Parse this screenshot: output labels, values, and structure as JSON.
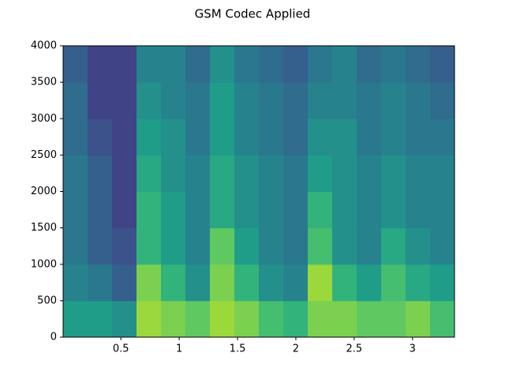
{
  "chart_data": {
    "type": "heatmap",
    "title": "GSM Codec Applied",
    "colormap": "viridis",
    "clim": [
      0,
      1
    ],
    "xlim": [
      0.005,
      3.36
    ],
    "ylim": [
      0,
      4000
    ],
    "xticks": [
      0.5,
      1.0,
      1.5,
      2.0,
      2.5,
      3.0
    ],
    "yticks": [
      0,
      500,
      1000,
      1500,
      2000,
      2500,
      3000,
      3500,
      4000
    ],
    "z": [
      [
        0.55,
        0.55,
        0.5,
        0.85,
        0.8,
        0.75,
        0.85,
        0.8,
        0.7,
        0.65,
        0.8,
        0.8,
        0.75,
        0.75,
        0.8,
        0.7
      ],
      [
        0.45,
        0.4,
        0.3,
        0.8,
        0.65,
        0.5,
        0.8,
        0.65,
        0.5,
        0.45,
        0.85,
        0.65,
        0.55,
        0.7,
        0.6,
        0.55
      ],
      [
        0.4,
        0.3,
        0.25,
        0.65,
        0.55,
        0.45,
        0.75,
        0.55,
        0.45,
        0.4,
        0.7,
        0.5,
        0.45,
        0.6,
        0.5,
        0.45
      ],
      [
        0.4,
        0.3,
        0.2,
        0.65,
        0.55,
        0.45,
        0.6,
        0.5,
        0.45,
        0.4,
        0.65,
        0.5,
        0.45,
        0.5,
        0.45,
        0.45
      ],
      [
        0.4,
        0.3,
        0.2,
        0.6,
        0.5,
        0.45,
        0.6,
        0.5,
        0.45,
        0.4,
        0.55,
        0.5,
        0.45,
        0.5,
        0.45,
        0.45
      ],
      [
        0.35,
        0.25,
        0.2,
        0.55,
        0.5,
        0.4,
        0.55,
        0.45,
        0.4,
        0.35,
        0.5,
        0.5,
        0.4,
        0.45,
        0.4,
        0.4
      ],
      [
        0.35,
        0.2,
        0.2,
        0.5,
        0.45,
        0.4,
        0.55,
        0.45,
        0.4,
        0.35,
        0.45,
        0.45,
        0.4,
        0.45,
        0.4,
        0.35
      ],
      [
        0.3,
        0.2,
        0.2,
        0.45,
        0.45,
        0.35,
        0.5,
        0.4,
        0.35,
        0.3,
        0.4,
        0.45,
        0.35,
        0.4,
        0.35,
        0.3
      ]
    ]
  }
}
